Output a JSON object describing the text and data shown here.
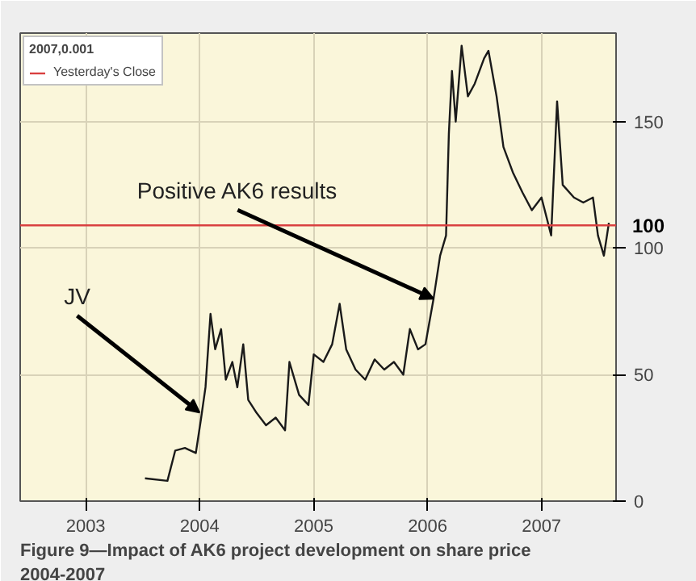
{
  "chart_data": {
    "type": "line",
    "title": "Figure 9—Impact of AK6 project development on share price 2004-2007",
    "legend_title": "2007,0.001",
    "legend": "top left",
    "grid": true,
    "xlim": [
      "2002-06-05",
      "2007-08-28"
    ],
    "xticks": [
      {
        "value": "2003-01-01",
        "label": "2003"
      },
      {
        "value": "2004-01-01",
        "label": "2004"
      },
      {
        "value": "2005-01-01",
        "label": "2005"
      },
      {
        "value": "2006-01-01",
        "label": "2006"
      },
      {
        "value": "2007-01-01",
        "label": "2007"
      }
    ],
    "ylim": [
      0,
      185
    ],
    "yticks": [
      0,
      50,
      100,
      150
    ],
    "series": [
      {
        "color": "#1a1a1a",
        "x": [
          "2003-07-10",
          "2003-09-20",
          "2003-10-15",
          "2003-11-15",
          "2003-12-20",
          "2004-01-05",
          "2004-01-20",
          "2004-02-05",
          "2004-02-20",
          "2004-03-10",
          "2004-03-25",
          "2004-04-15",
          "2004-05-01",
          "2004-05-20",
          "2004-06-05",
          "2004-07-01",
          "2004-08-01",
          "2004-09-01",
          "2004-10-01",
          "2004-10-15",
          "2004-11-15",
          "2004-12-15",
          "2005-01-01",
          "2005-02-01",
          "2005-03-01",
          "2005-03-25",
          "2005-04-15",
          "2005-05-15",
          "2005-06-15",
          "2005-07-15",
          "2005-08-15",
          "2005-09-15",
          "2005-10-15",
          "2005-11-05",
          "2005-12-01",
          "2005-12-25",
          "2006-01-20",
          "2006-02-10",
          "2006-03-01",
          "2006-03-10",
          "2006-03-20",
          "2006-04-01",
          "2006-04-20",
          "2006-05-10",
          "2006-06-01",
          "2006-07-01",
          "2006-07-15",
          "2006-08-10",
          "2006-09-01",
          "2006-10-01",
          "2006-11-01",
          "2006-12-01",
          "2007-01-01",
          "2007-02-01",
          "2007-02-20",
          "2007-03-10",
          "2007-04-15",
          "2007-05-15",
          "2007-06-15",
          "2007-07-01",
          "2007-07-20",
          "2007-08-05"
        ],
        "values": [
          9,
          8,
          20,
          21,
          19,
          32,
          45,
          74,
          60,
          68,
          48,
          55,
          45,
          62,
          40,
          35,
          30,
          33,
          28,
          55,
          42,
          38,
          58,
          55,
          62,
          78,
          60,
          52,
          48,
          56,
          52,
          55,
          50,
          68,
          60,
          62,
          80,
          97,
          105,
          145,
          170,
          150,
          180,
          160,
          165,
          175,
          178,
          160,
          140,
          130,
          122,
          115,
          120,
          105,
          158,
          125,
          120,
          118,
          120,
          105,
          97,
          110
        ]
      }
    ],
    "ref_lines": [
      {
        "axis": "y",
        "value": 109,
        "label": "Yesterday's Close",
        "color": "#d94040"
      }
    ],
    "annotations": [
      {
        "text": "Positive AK6 results",
        "x": "2006-01-20",
        "y": 80
      },
      {
        "text": "JV",
        "x": "2004-01-01",
        "y": 35
      },
      "100"
    ]
  }
}
